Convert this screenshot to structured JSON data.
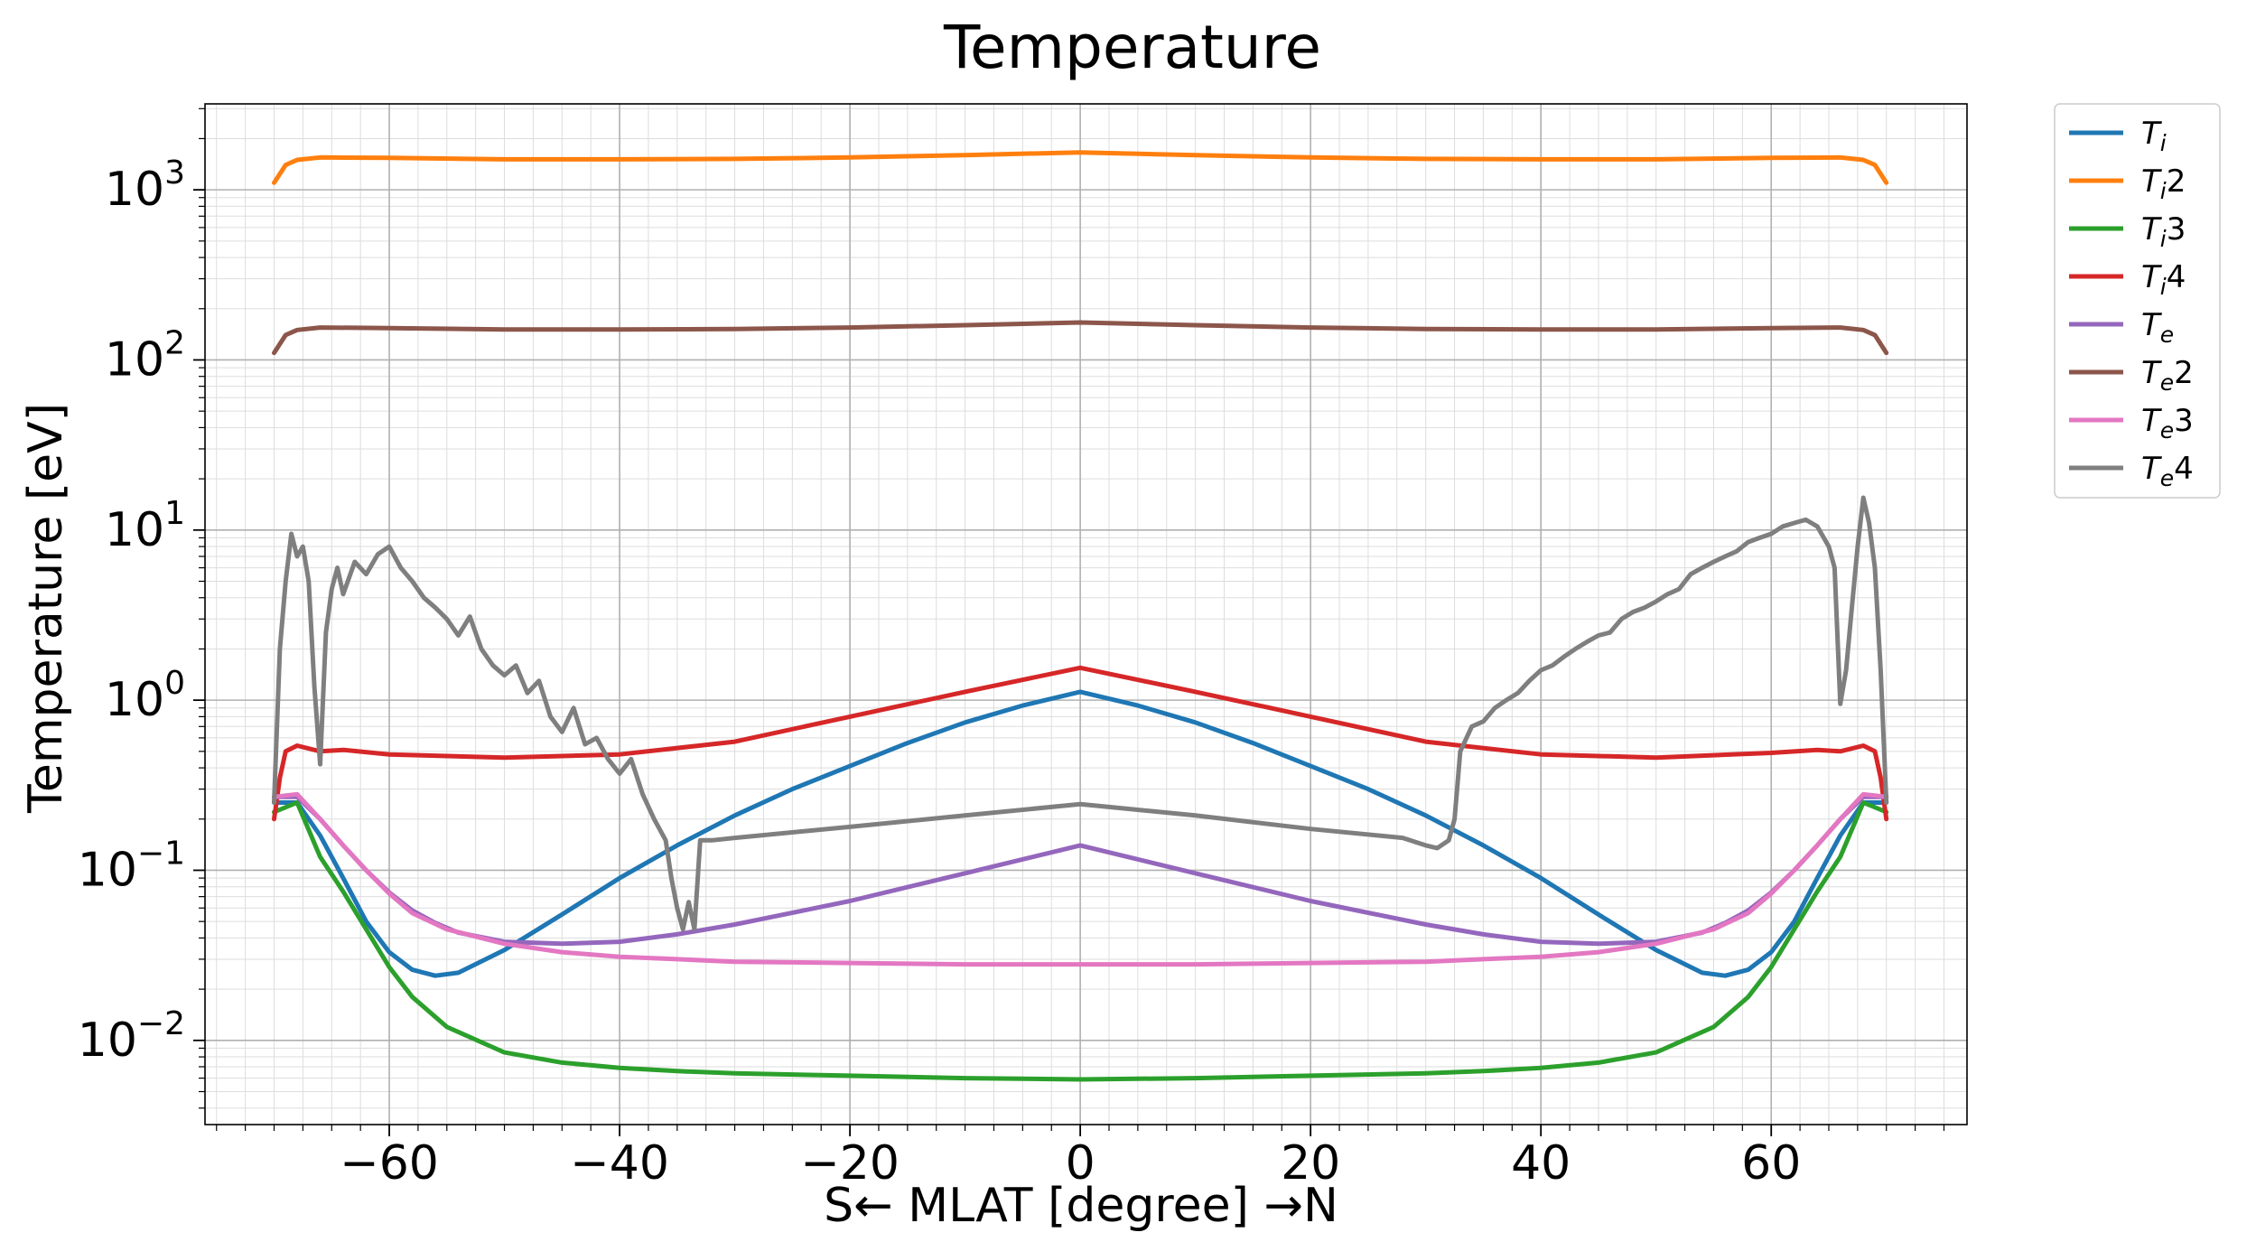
{
  "chart_data": {
    "type": "line",
    "title": "Temperature",
    "xlabel": "S← MLAT [degree] →N",
    "ylabel": "Temperature [eV]",
    "yscale": "log",
    "xlim": [
      -76,
      77
    ],
    "ylim": [
      0.0032,
      3200
    ],
    "x_ticks": [
      -60,
      -40,
      -20,
      0,
      20,
      40,
      60
    ],
    "x_tick_labels": [
      "−60",
      "−40",
      "−20",
      "0",
      "20",
      "40",
      "60"
    ],
    "y_ticks": [
      0.01,
      0.1,
      1,
      10,
      100,
      1000
    ],
    "y_tick_labels": [
      {
        "base": "10",
        "exp": "−2"
      },
      {
        "base": "10",
        "exp": "−1"
      },
      {
        "base": "10",
        "exp": "0"
      },
      {
        "base": "10",
        "exp": "1"
      },
      {
        "base": "10",
        "exp": "2"
      },
      {
        "base": "10",
        "exp": "3"
      }
    ],
    "grid": true,
    "legend_placement": "outside-top-right",
    "series": [
      {
        "name": "Ti",
        "label_main": "T",
        "label_sub": "i",
        "label_suffix": "",
        "color": "#1f77b4",
        "x": [
          -70,
          -68,
          -66,
          -64,
          -62,
          -60,
          -58,
          -56,
          -54,
          -50,
          -45,
          -40,
          -35,
          -30,
          -25,
          -20,
          -15,
          -10,
          -5,
          0,
          5,
          10,
          15,
          20,
          25,
          30,
          35,
          40,
          45,
          50,
          54,
          56,
          58,
          60,
          62,
          64,
          66,
          68,
          70
        ],
        "y": [
          0.25,
          0.25,
          0.16,
          0.09,
          0.05,
          0.033,
          0.026,
          0.024,
          0.025,
          0.034,
          0.055,
          0.09,
          0.14,
          0.21,
          0.3,
          0.41,
          0.56,
          0.74,
          0.93,
          1.12,
          0.93,
          0.74,
          0.56,
          0.41,
          0.3,
          0.21,
          0.14,
          0.09,
          0.055,
          0.034,
          0.025,
          0.024,
          0.026,
          0.033,
          0.05,
          0.09,
          0.16,
          0.25,
          0.25
        ]
      },
      {
        "name": "Ti2",
        "label_main": "T",
        "label_sub": "i",
        "label_suffix": "2",
        "color": "#ff7f0e",
        "x": [
          -70,
          -69,
          -68,
          -66,
          -60,
          -50,
          -40,
          -30,
          -20,
          -10,
          0,
          10,
          20,
          30,
          40,
          50,
          60,
          66,
          68,
          69,
          70
        ],
        "y": [
          1100,
          1400,
          1500,
          1550,
          1540,
          1510,
          1510,
          1520,
          1550,
          1600,
          1660,
          1600,
          1550,
          1520,
          1510,
          1510,
          1540,
          1550,
          1500,
          1400,
          1100
        ]
      },
      {
        "name": "Ti3",
        "label_main": "T",
        "label_sub": "i",
        "label_suffix": "3",
        "color": "#2ca02c",
        "x": [
          -70,
          -68,
          -66,
          -64,
          -62,
          -60,
          -58,
          -55,
          -50,
          -45,
          -40,
          -35,
          -30,
          -20,
          -10,
          0,
          10,
          20,
          30,
          35,
          40,
          45,
          50,
          55,
          58,
          60,
          62,
          64,
          66,
          68,
          70
        ],
        "y": [
          0.22,
          0.25,
          0.12,
          0.075,
          0.045,
          0.027,
          0.018,
          0.012,
          0.0085,
          0.0074,
          0.0069,
          0.0066,
          0.0064,
          0.0062,
          0.006,
          0.0059,
          0.006,
          0.0062,
          0.0064,
          0.0066,
          0.0069,
          0.0074,
          0.0085,
          0.012,
          0.018,
          0.027,
          0.045,
          0.075,
          0.12,
          0.25,
          0.22
        ]
      },
      {
        "name": "Ti4",
        "label_main": "T",
        "label_sub": "i",
        "label_suffix": "4",
        "color": "#d62728",
        "x": [
          -70,
          -69.5,
          -69,
          -68,
          -66,
          -64,
          -60,
          -50,
          -40,
          -30,
          -20,
          -10,
          0,
          10,
          20,
          30,
          40,
          50,
          60,
          64,
          66,
          68,
          69,
          69.5,
          70
        ],
        "y": [
          0.2,
          0.35,
          0.5,
          0.54,
          0.5,
          0.51,
          0.48,
          0.46,
          0.48,
          0.57,
          0.8,
          1.12,
          1.55,
          1.12,
          0.8,
          0.57,
          0.48,
          0.46,
          0.49,
          0.51,
          0.5,
          0.54,
          0.5,
          0.35,
          0.2
        ]
      },
      {
        "name": "Te",
        "label_main": "T",
        "label_sub": "e",
        "label_suffix": "",
        "color": "#9467bd",
        "x": [
          -70,
          -68,
          -66,
          -64,
          -62,
          -60,
          -58,
          -56,
          -54,
          -50,
          -45,
          -40,
          -35,
          -30,
          -20,
          -10,
          0,
          10,
          20,
          30,
          35,
          40,
          45,
          50,
          54,
          56,
          58,
          60,
          62,
          64,
          66,
          68,
          70
        ],
        "y": [
          0.27,
          0.27,
          0.2,
          0.14,
          0.1,
          0.074,
          0.058,
          0.049,
          0.043,
          0.038,
          0.037,
          0.038,
          0.042,
          0.048,
          0.066,
          0.096,
          0.14,
          0.096,
          0.066,
          0.048,
          0.042,
          0.038,
          0.037,
          0.038,
          0.043,
          0.049,
          0.058,
          0.074,
          0.1,
          0.14,
          0.2,
          0.27,
          0.27
        ]
      },
      {
        "name": "Te2",
        "label_main": "T",
        "label_sub": "e",
        "label_suffix": "2",
        "color": "#8c564b",
        "x": [
          -70,
          -69,
          -68,
          -66,
          -60,
          -50,
          -40,
          -30,
          -20,
          -10,
          0,
          10,
          20,
          30,
          40,
          50,
          60,
          66,
          68,
          69,
          70
        ],
        "y": [
          110,
          140,
          150,
          155,
          154,
          151,
          151,
          152,
          155,
          160,
          166,
          160,
          155,
          152,
          151,
          151,
          154,
          155,
          150,
          140,
          110
        ]
      },
      {
        "name": "Te3",
        "label_main": "T",
        "label_sub": "e",
        "label_suffix": "3",
        "color": "#e377c2",
        "x": [
          -70,
          -68,
          -66,
          -64,
          -62,
          -60,
          -58,
          -55,
          -50,
          -45,
          -40,
          -35,
          -30,
          -20,
          -10,
          0,
          10,
          20,
          30,
          35,
          40,
          45,
          50,
          55,
          58,
          60,
          62,
          64,
          66,
          68,
          70
        ],
        "y": [
          0.27,
          0.28,
          0.2,
          0.14,
          0.1,
          0.073,
          0.056,
          0.045,
          0.037,
          0.033,
          0.031,
          0.03,
          0.029,
          0.0285,
          0.028,
          0.028,
          0.028,
          0.0285,
          0.029,
          0.03,
          0.031,
          0.033,
          0.037,
          0.045,
          0.056,
          0.073,
          0.1,
          0.14,
          0.2,
          0.28,
          0.27
        ]
      },
      {
        "name": "Te4",
        "label_main": "T",
        "label_sub": "e",
        "label_suffix": "4",
        "color": "#7f7f7f",
        "x": [
          -70,
          -69.5,
          -69,
          -68.5,
          -68,
          -67.5,
          -67,
          -66.5,
          -66,
          -65.5,
          -65,
          -64.5,
          -64,
          -63,
          -62,
          -61,
          -60,
          -59,
          -58,
          -57,
          -56,
          -55,
          -54,
          -53,
          -52,
          -51,
          -50,
          -49,
          -48,
          -47,
          -46,
          -45,
          -44,
          -43,
          -42,
          -41,
          -40,
          -39,
          -38,
          -37,
          -36,
          -35.5,
          -35,
          -34.5,
          -34,
          -33.5,
          -33,
          -32,
          -30,
          -20,
          -10,
          0,
          10,
          20,
          28,
          30,
          31,
          32,
          32.5,
          33,
          34,
          35,
          36,
          37,
          38,
          39,
          40,
          41,
          42,
          43,
          44,
          45,
          46,
          47,
          48,
          49,
          50,
          51,
          52,
          53,
          54,
          55,
          56,
          57,
          58,
          59,
          60,
          61,
          62,
          63,
          64,
          65,
          65.5,
          66,
          66.5,
          67,
          67.5,
          68,
          68.5,
          69,
          69.5,
          70
        ],
        "y": [
          0.25,
          2.0,
          5.0,
          9.5,
          7.0,
          8.0,
          5.0,
          1.2,
          0.42,
          2.5,
          4.5,
          6.0,
          4.2,
          6.5,
          5.5,
          7.2,
          8.0,
          6.0,
          5.0,
          4.0,
          3.5,
          3.0,
          2.4,
          3.1,
          2.0,
          1.6,
          1.4,
          1.6,
          1.1,
          1.3,
          0.8,
          0.65,
          0.9,
          0.55,
          0.6,
          0.45,
          0.37,
          0.45,
          0.28,
          0.2,
          0.15,
          0.09,
          0.06,
          0.045,
          0.065,
          0.045,
          0.15,
          0.15,
          0.155,
          0.18,
          0.21,
          0.245,
          0.21,
          0.175,
          0.155,
          0.14,
          0.135,
          0.15,
          0.2,
          0.5,
          0.7,
          0.75,
          0.9,
          1.0,
          1.1,
          1.3,
          1.5,
          1.6,
          1.8,
          2.0,
          2.2,
          2.4,
          2.5,
          3.0,
          3.3,
          3.5,
          3.8,
          4.2,
          4.5,
          5.5,
          6.0,
          6.5,
          7.0,
          7.5,
          8.5,
          9.0,
          9.5,
          10.5,
          11.0,
          11.5,
          10.5,
          8.0,
          6.0,
          0.95,
          1.5,
          3.5,
          8.0,
          15.5,
          11.0,
          6.0,
          1.5,
          0.25
        ]
      }
    ]
  }
}
